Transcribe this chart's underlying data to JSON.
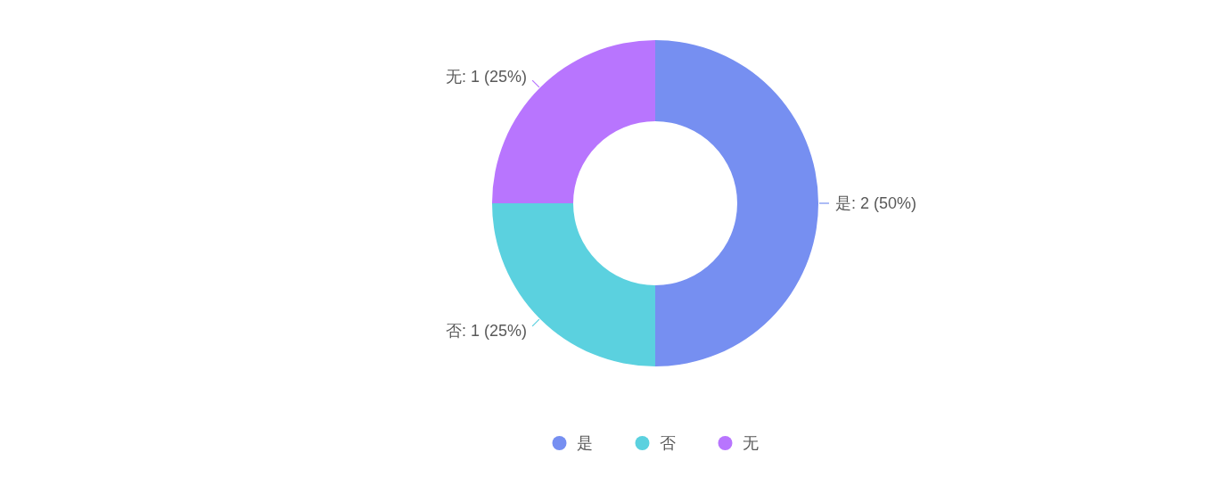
{
  "chart_data": {
    "type": "donut",
    "categories": [
      "是",
      "否",
      "无"
    ],
    "values": [
      2,
      1,
      1
    ],
    "colors": [
      "#768ff1",
      "#5bd1df",
      "#b875fe"
    ],
    "value_labels": [
      "是: 2 (50%)",
      "否: 1 (25%)",
      "无: 1 (25%)"
    ],
    "legend": "bottom"
  }
}
